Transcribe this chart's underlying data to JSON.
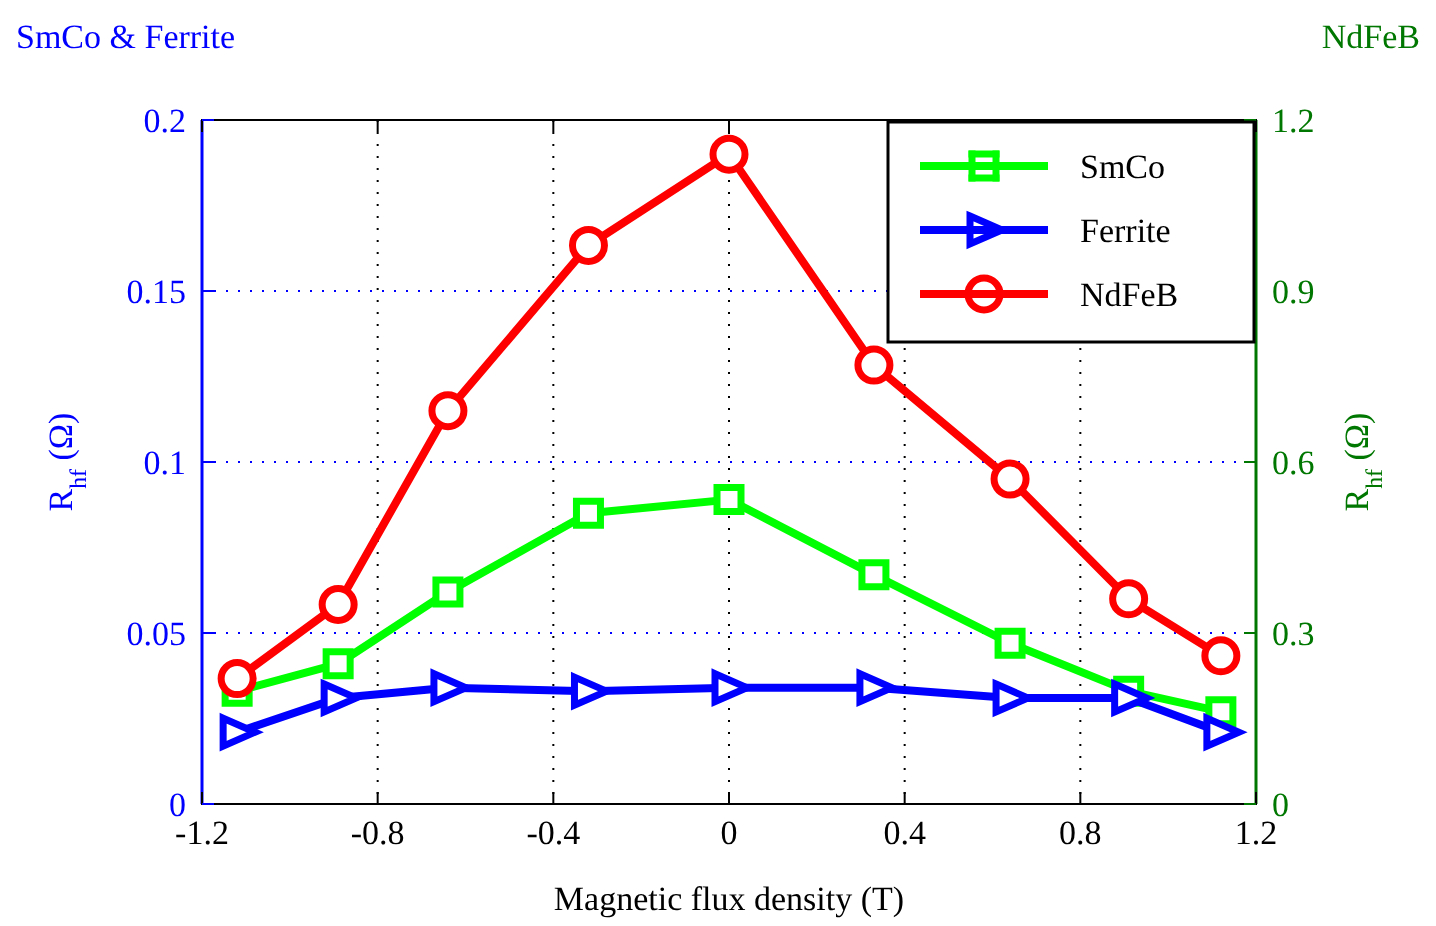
{
  "chart_data": {
    "type": "line",
    "xlabel": "Magnetic flux density (T)",
    "ylabel": "R$_{hf}$ (Ω)",
    "y2label": "R$_{hf}$ (Ω)",
    "annotations": [
      "SmCo & Ferrite",
      "NdFeB"
    ],
    "x": [
      -1.12,
      -0.89,
      -0.64,
      -0.32,
      0,
      0.33,
      0.64,
      0.91,
      1.12
    ],
    "series": [
      {
        "name": "SmCo",
        "color": "#00ff00",
        "marker": "square",
        "values": [
          0.033,
          0.041,
          0.062,
          0.085,
          0.089,
          0.067,
          0.047,
          0.033,
          0.027
        ]
      },
      {
        "name": "Ferrite",
        "color": "#0000ff",
        "marker": "triangle",
        "values": [
          0.021,
          0.031,
          0.034,
          0.033,
          0.034,
          0.034,
          0.031,
          0.031,
          0.021
        ]
      },
      {
        "name": "NdFeB",
        "color": "#ff0000",
        "marker": "circle",
        "axis": "y2",
        "values": [
          0.22,
          0.35,
          0.69,
          0.98,
          1.14,
          0.77,
          0.57,
          0.36,
          0.26
        ]
      }
    ],
    "xlim": [
      -1.2,
      1.2
    ],
    "xticks": [
      -1.2,
      -0.8,
      -0.4,
      0,
      0.4,
      0.8,
      1.2
    ],
    "ylim": [
      0,
      0.2
    ],
    "yticks": [
      0,
      0.05,
      0.1,
      0.15,
      0.2
    ],
    "y2lim": [
      0,
      1.2
    ],
    "y2ticks": [
      0,
      0.3,
      0.6,
      0.9,
      1.2
    ],
    "grid": true,
    "legend": "top right",
    "line_style": "solid"
  }
}
